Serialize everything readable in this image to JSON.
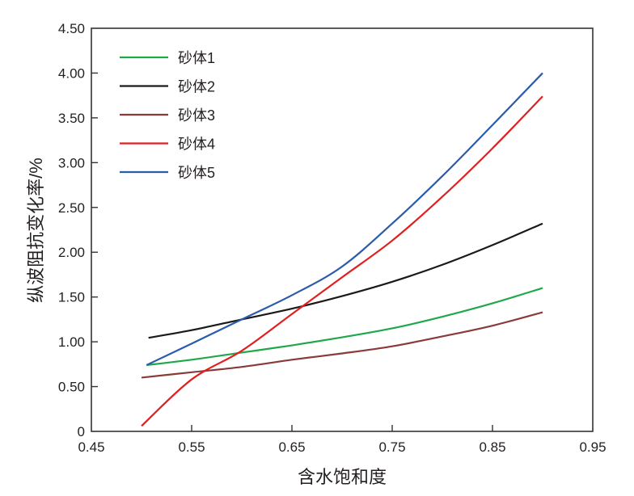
{
  "chart_data": {
    "type": "line",
    "title": "",
    "xlabel": "含水饱和度",
    "ylabel": "纵波阻抗变化率/%",
    "xlim": [
      0.45,
      0.95
    ],
    "ylim": [
      0,
      4.5
    ],
    "xticks": [
      "0.45",
      "0.55",
      "0.65",
      "0.75",
      "0.85",
      "0.95"
    ],
    "xtick_values": [
      0.45,
      0.55,
      0.65,
      0.75,
      0.85,
      0.95
    ],
    "yticks": [
      "0",
      "0.50",
      "1.00",
      "1.50",
      "2.00",
      "2.50",
      "3.00",
      "3.50",
      "4.00",
      "4.50"
    ],
    "ytick_values": [
      0,
      0.5,
      1,
      1.5,
      2,
      2.5,
      3,
      3.5,
      4,
      4.5
    ],
    "grid": false,
    "legend_position": "top-left",
    "series": [
      {
        "name": "砂体1",
        "color": "#1fa84a",
        "x": [
          0.505,
          0.55,
          0.6,
          0.65,
          0.7,
          0.75,
          0.8,
          0.85,
          0.9
        ],
        "y": [
          0.74,
          0.8,
          0.88,
          0.96,
          1.05,
          1.15,
          1.28,
          1.43,
          1.6
        ]
      },
      {
        "name": "砂体2",
        "color": "#1a1a1a",
        "x": [
          0.507,
          0.55,
          0.6,
          0.65,
          0.7,
          0.75,
          0.8,
          0.85,
          0.9
        ],
        "y": [
          1.045,
          1.13,
          1.25,
          1.37,
          1.51,
          1.67,
          1.86,
          2.08,
          2.32
        ]
      },
      {
        "name": "砂体3",
        "color": "#8b3a3a",
        "x": [
          0.5,
          0.55,
          0.6,
          0.65,
          0.7,
          0.75,
          0.8,
          0.85,
          0.9
        ],
        "y": [
          0.6,
          0.66,
          0.72,
          0.8,
          0.87,
          0.95,
          1.06,
          1.18,
          1.33
        ]
      },
      {
        "name": "砂体4",
        "color": "#e02020",
        "x": [
          0.5,
          0.55,
          0.6,
          0.65,
          0.7,
          0.75,
          0.8,
          0.85,
          0.9
        ],
        "y": [
          0.06,
          0.58,
          0.9,
          1.31,
          1.72,
          2.13,
          2.62,
          3.16,
          3.74
        ]
      },
      {
        "name": "砂体5",
        "color": "#2a5caa",
        "x": [
          0.505,
          0.55,
          0.6,
          0.65,
          0.7,
          0.75,
          0.8,
          0.85,
          0.9
        ],
        "y": [
          0.74,
          0.98,
          1.25,
          1.52,
          1.84,
          2.32,
          2.85,
          3.42,
          4.0
        ]
      }
    ]
  }
}
